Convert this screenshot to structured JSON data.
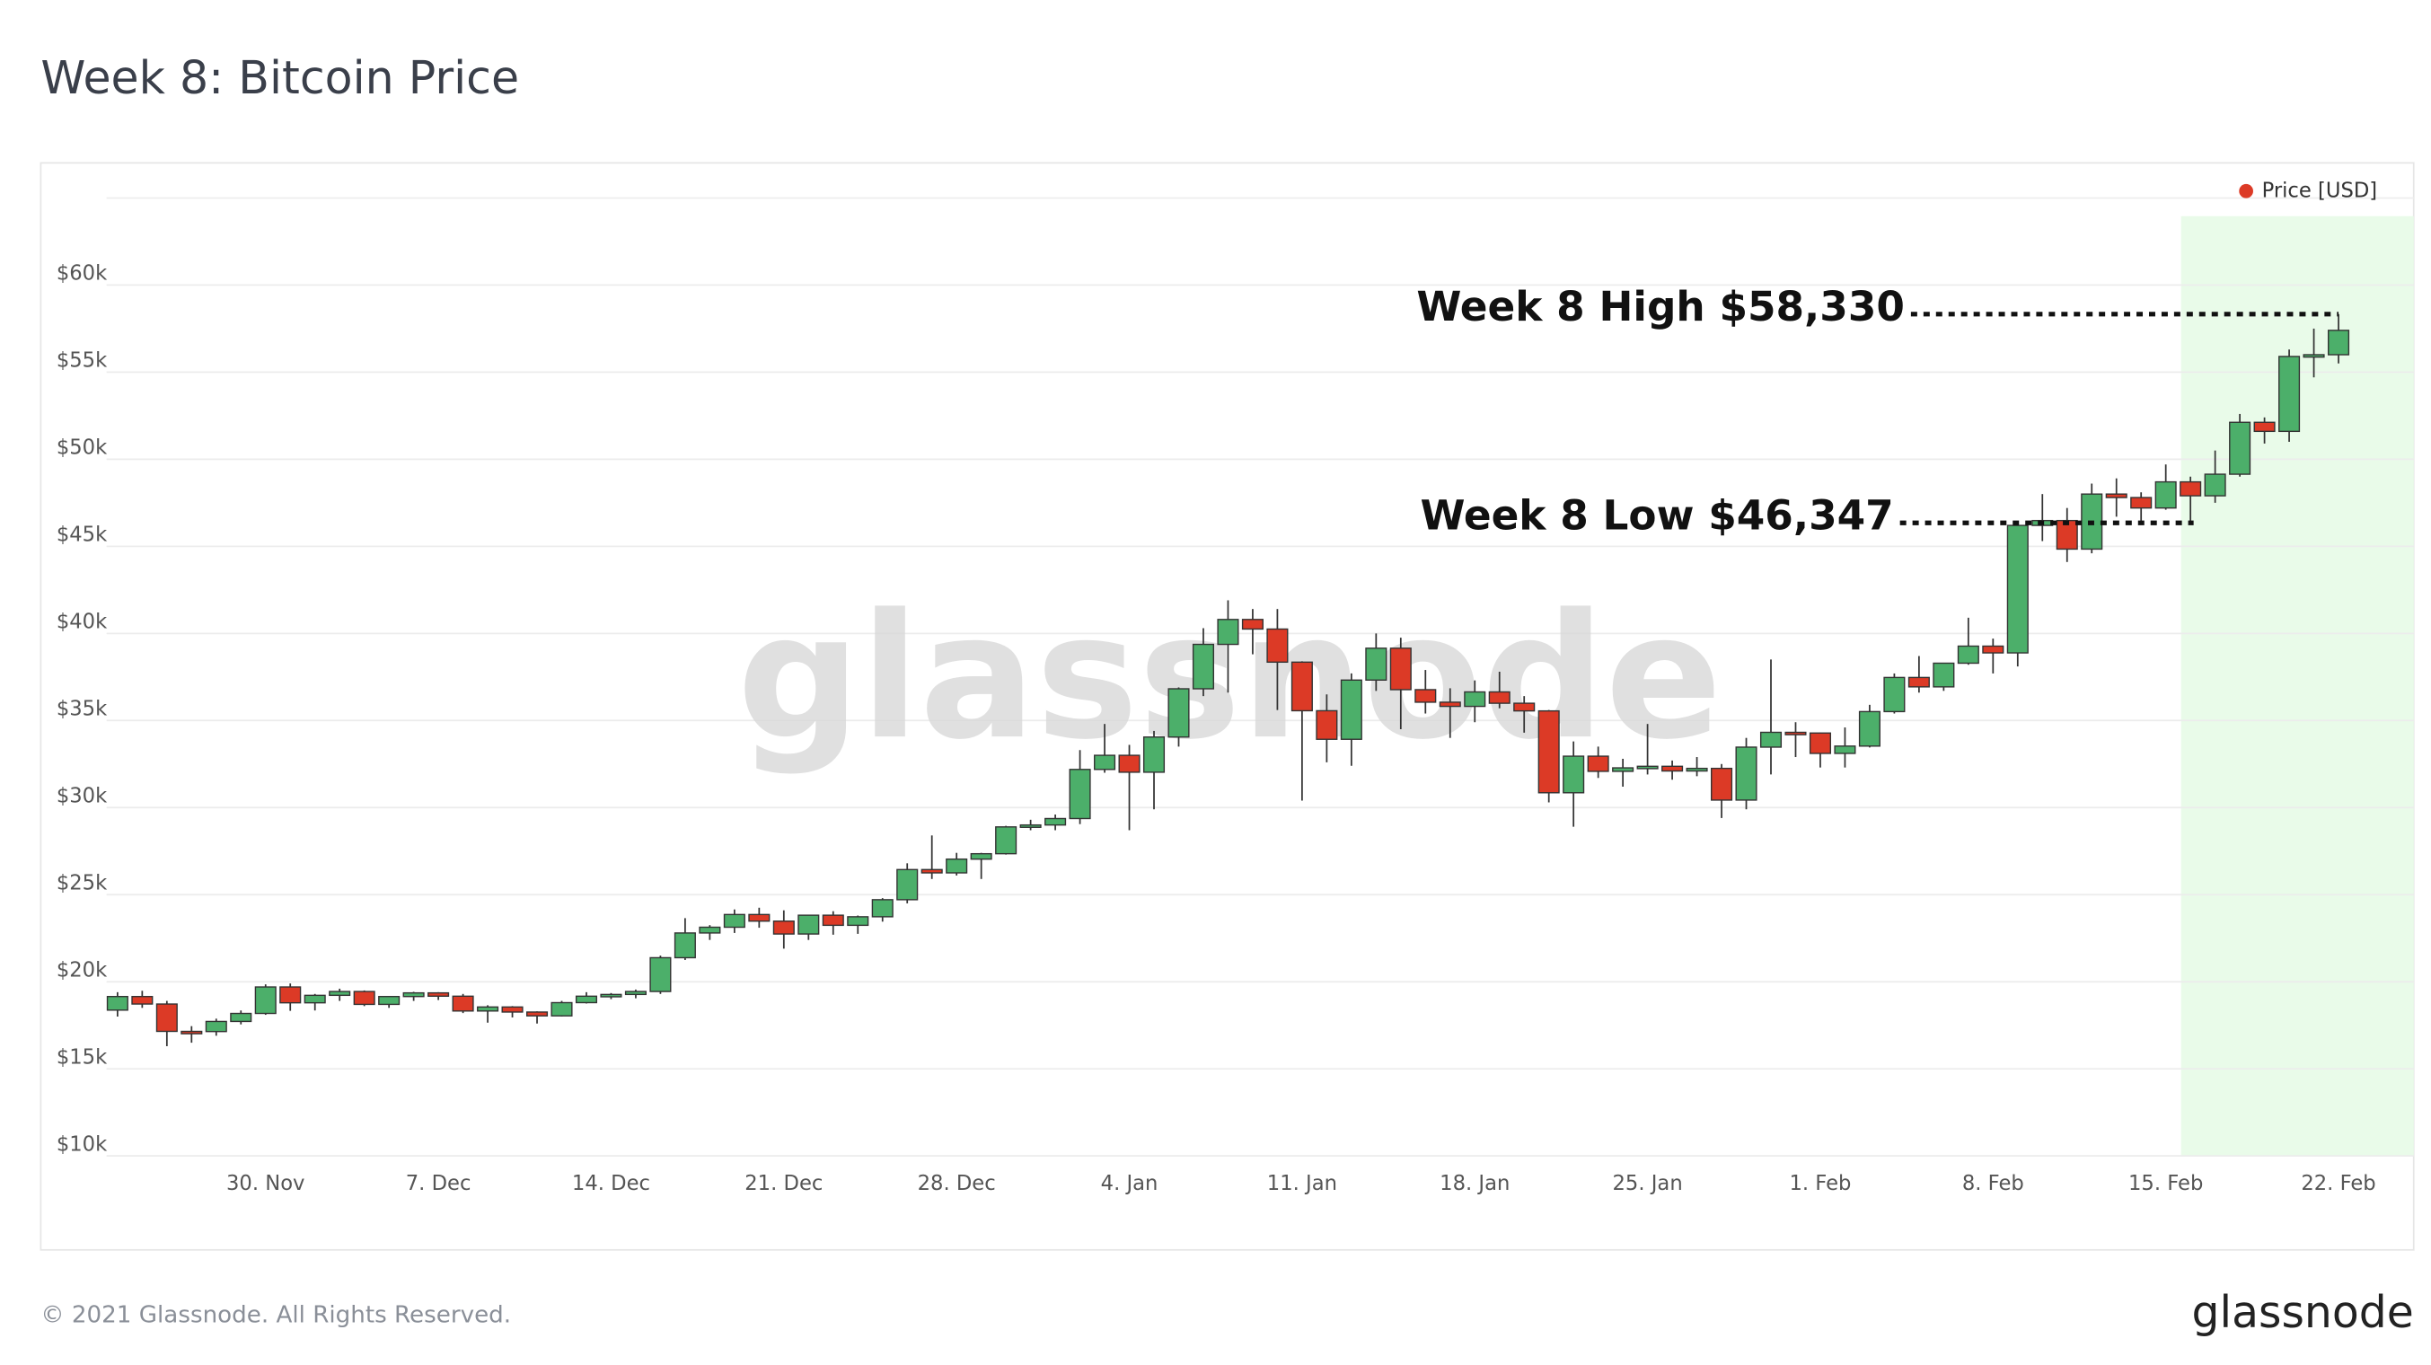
{
  "chart_data": {
    "type": "candlestick",
    "title": "Week 8: Bitcoin Price",
    "watermark": "glassnode",
    "footer": "© 2021 Glassnode. All Rights Reserved.",
    "logo": "glassnode",
    "legend": "top-right",
    "grid": true,
    "up_color": "#4caf6a",
    "down_color": "#dc3a26",
    "highlight_color": "#e9fbe9",
    "categories": [
      null,
      null,
      null,
      null,
      null,
      null,
      "30. Nov",
      null,
      null,
      null,
      null,
      null,
      null,
      "7. Dec",
      null,
      null,
      null,
      null,
      null,
      null,
      "14. Dec",
      null,
      null,
      null,
      null,
      null,
      null,
      "21. Dec",
      null,
      null,
      null,
      null,
      null,
      null,
      "28. Dec",
      null,
      null,
      null,
      null,
      null,
      null,
      "4. Jan",
      null,
      null,
      null,
      null,
      null,
      null,
      "11. Jan",
      null,
      null,
      null,
      null,
      null,
      null,
      "18. Jan",
      null,
      null,
      null,
      null,
      null,
      null,
      "25. Jan",
      null,
      null,
      null,
      null,
      null,
      null,
      "1. Feb",
      null,
      null,
      null,
      null,
      null,
      null,
      "8. Feb",
      null,
      null,
      null,
      null,
      null,
      null,
      "15. Feb",
      null,
      null,
      null,
      null,
      null,
      null,
      "22. Feb"
    ],
    "series": [
      {
        "name": "Price [USD]",
        "color": "#dc3a26",
        "open": [
          18370,
          19150,
          18720,
          17150,
          17140,
          17720,
          18180,
          19700,
          18790,
          19220,
          19440,
          18700,
          19150,
          19360,
          19170,
          18320,
          18550,
          18260,
          18040,
          18800,
          19170,
          19270,
          19440,
          21380,
          22800,
          23130,
          23860,
          23480,
          22740,
          23820,
          23240,
          23730,
          24710,
          26440,
          26250,
          27040,
          27350,
          28890,
          29000,
          29370,
          32190,
          33000,
          32030,
          34050,
          36820,
          39370,
          40800,
          40250,
          38350,
          35560,
          33920,
          37320,
          39150,
          36770,
          36050,
          35810,
          36640,
          35990,
          35550,
          30850,
          32950,
          32080,
          32280,
          32370,
          32100,
          32250,
          30430,
          33470,
          34320,
          34280,
          33110,
          33530,
          35510,
          37470,
          36930,
          38290,
          39270,
          38880,
          46200,
          46480,
          44840,
          48000,
          47800,
          47200,
          48700,
          47900,
          49140,
          52120,
          51600,
          55900,
          56000
        ],
        "high": [
          19400,
          19480,
          18900,
          17450,
          17880,
          18350,
          19850,
          19900,
          19300,
          19600,
          19500,
          19170,
          19420,
          19400,
          19300,
          18650,
          18600,
          18300,
          18900,
          19400,
          19350,
          19550,
          21500,
          23650,
          23250,
          24150,
          24250,
          24100,
          23800,
          24050,
          23800,
          24800,
          26800,
          28400,
          27400,
          27400,
          28950,
          29300,
          29600,
          33300,
          34800,
          33600,
          34400,
          36900,
          40300,
          41900,
          41400,
          41400,
          38400,
          36500,
          37700,
          40000,
          39750,
          37900,
          36850,
          37300,
          37800,
          36400,
          35600,
          33800,
          33500,
          32800,
          34800,
          32700,
          32900,
          32500,
          34000,
          38500,
          34900,
          34300,
          34600,
          35900,
          37700,
          38700,
          38300,
          40900,
          39700,
          46300,
          48000,
          47200,
          48600,
          48900,
          48100,
          49700,
          49000,
          50500,
          52600,
          52400,
          56300,
          57500,
          58330
        ],
        "low": [
          18000,
          18500,
          16300,
          16500,
          16900,
          17550,
          18100,
          18330,
          18350,
          18900,
          18600,
          18500,
          18900,
          18950,
          18200,
          17650,
          17950,
          17600,
          18000,
          18750,
          19000,
          19050,
          19300,
          21250,
          22400,
          22800,
          23100,
          21900,
          22400,
          22700,
          22750,
          23450,
          24500,
          25900,
          26100,
          25900,
          27300,
          28700,
          28700,
          29050,
          32000,
          28700,
          29900,
          33500,
          36400,
          36600,
          38800,
          35600,
          30400,
          32600,
          32400,
          36700,
          34500,
          35400,
          34000,
          34900,
          35700,
          34300,
          30300,
          28900,
          31700,
          31200,
          31900,
          31600,
          31800,
          29400,
          29900,
          31900,
          32900,
          32300,
          32300,
          33450,
          35400,
          36600,
          36700,
          38200,
          37700,
          38100,
          45300,
          44100,
          44600,
          46700,
          46300,
          47100,
          46347,
          47500,
          49000,
          50900,
          51000,
          54700,
          55500
        ],
        "close": [
          19150,
          18720,
          17150,
          17140,
          17720,
          18180,
          19700,
          18790,
          19220,
          19440,
          18700,
          19150,
          19360,
          19170,
          18320,
          18550,
          18260,
          18040,
          18800,
          19170,
          19270,
          19440,
          21380,
          22800,
          23130,
          23860,
          23480,
          22740,
          23820,
          23240,
          23730,
          24710,
          26440,
          26250,
          27040,
          27350,
          28890,
          29000,
          29370,
          32190,
          33000,
          32030,
          34050,
          36820,
          39370,
          40800,
          40250,
          38350,
          35560,
          33920,
          37320,
          39150,
          36770,
          36050,
          35810,
          36640,
          35990,
          35550,
          30850,
          32950,
          32080,
          32280,
          32370,
          32100,
          32250,
          30430,
          33470,
          34320,
          34280,
          33110,
          33530,
          35510,
          37470,
          36930,
          38290,
          39270,
          38880,
          46200,
          46480,
          44840,
          48000,
          47800,
          47200,
          48700,
          47900,
          49140,
          52120,
          51600,
          55900,
          56000,
          57400
        ]
      }
    ],
    "annotations": [
      {
        "text": "Week 8 High $58,330",
        "value": 58330
      },
      {
        "text": "Week 8 Low $46,347",
        "value": 46347
      }
    ],
    "ylim": [
      10000,
      65000
    ],
    "yticks": [
      {
        "value": 10000,
        "label": "$10k"
      },
      {
        "value": 15000,
        "label": "$15k"
      },
      {
        "value": 20000,
        "label": "$20k"
      },
      {
        "value": 25000,
        "label": "$25k"
      },
      {
        "value": 30000,
        "label": "$30k"
      },
      {
        "value": 35000,
        "label": "$35k"
      },
      {
        "value": 40000,
        "label": "$40k"
      },
      {
        "value": 45000,
        "label": "$45k"
      },
      {
        "value": 50000,
        "label": "$50k"
      },
      {
        "value": 55000,
        "label": "$55k"
      },
      {
        "value": 60000,
        "label": "$60k"
      }
    ]
  }
}
